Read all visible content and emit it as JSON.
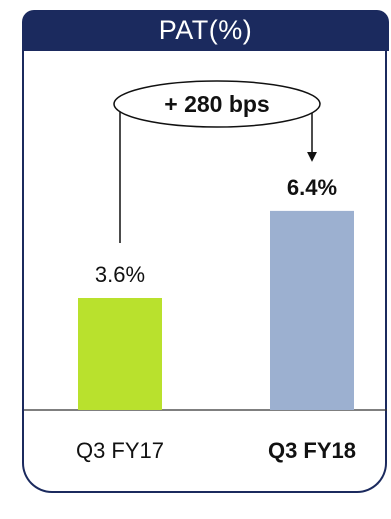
{
  "chart_data": {
    "type": "bar",
    "title": "PAT(%)",
    "categories": [
      "Q3 FY17",
      "Q3 FY18"
    ],
    "values": [
      3.6,
      6.4
    ],
    "value_labels": [
      "3.6%",
      "6.4%"
    ],
    "bold_categories": [
      false,
      true
    ],
    "colors": [
      "#b9e12d",
      "#9cb0d0"
    ],
    "annotation": "+ 280 bps",
    "ylim": [
      0,
      8
    ],
    "grid": false,
    "legend": "none"
  },
  "colors": {
    "header_bg": "#1b2a5e",
    "frame": "#1b2a5e"
  }
}
